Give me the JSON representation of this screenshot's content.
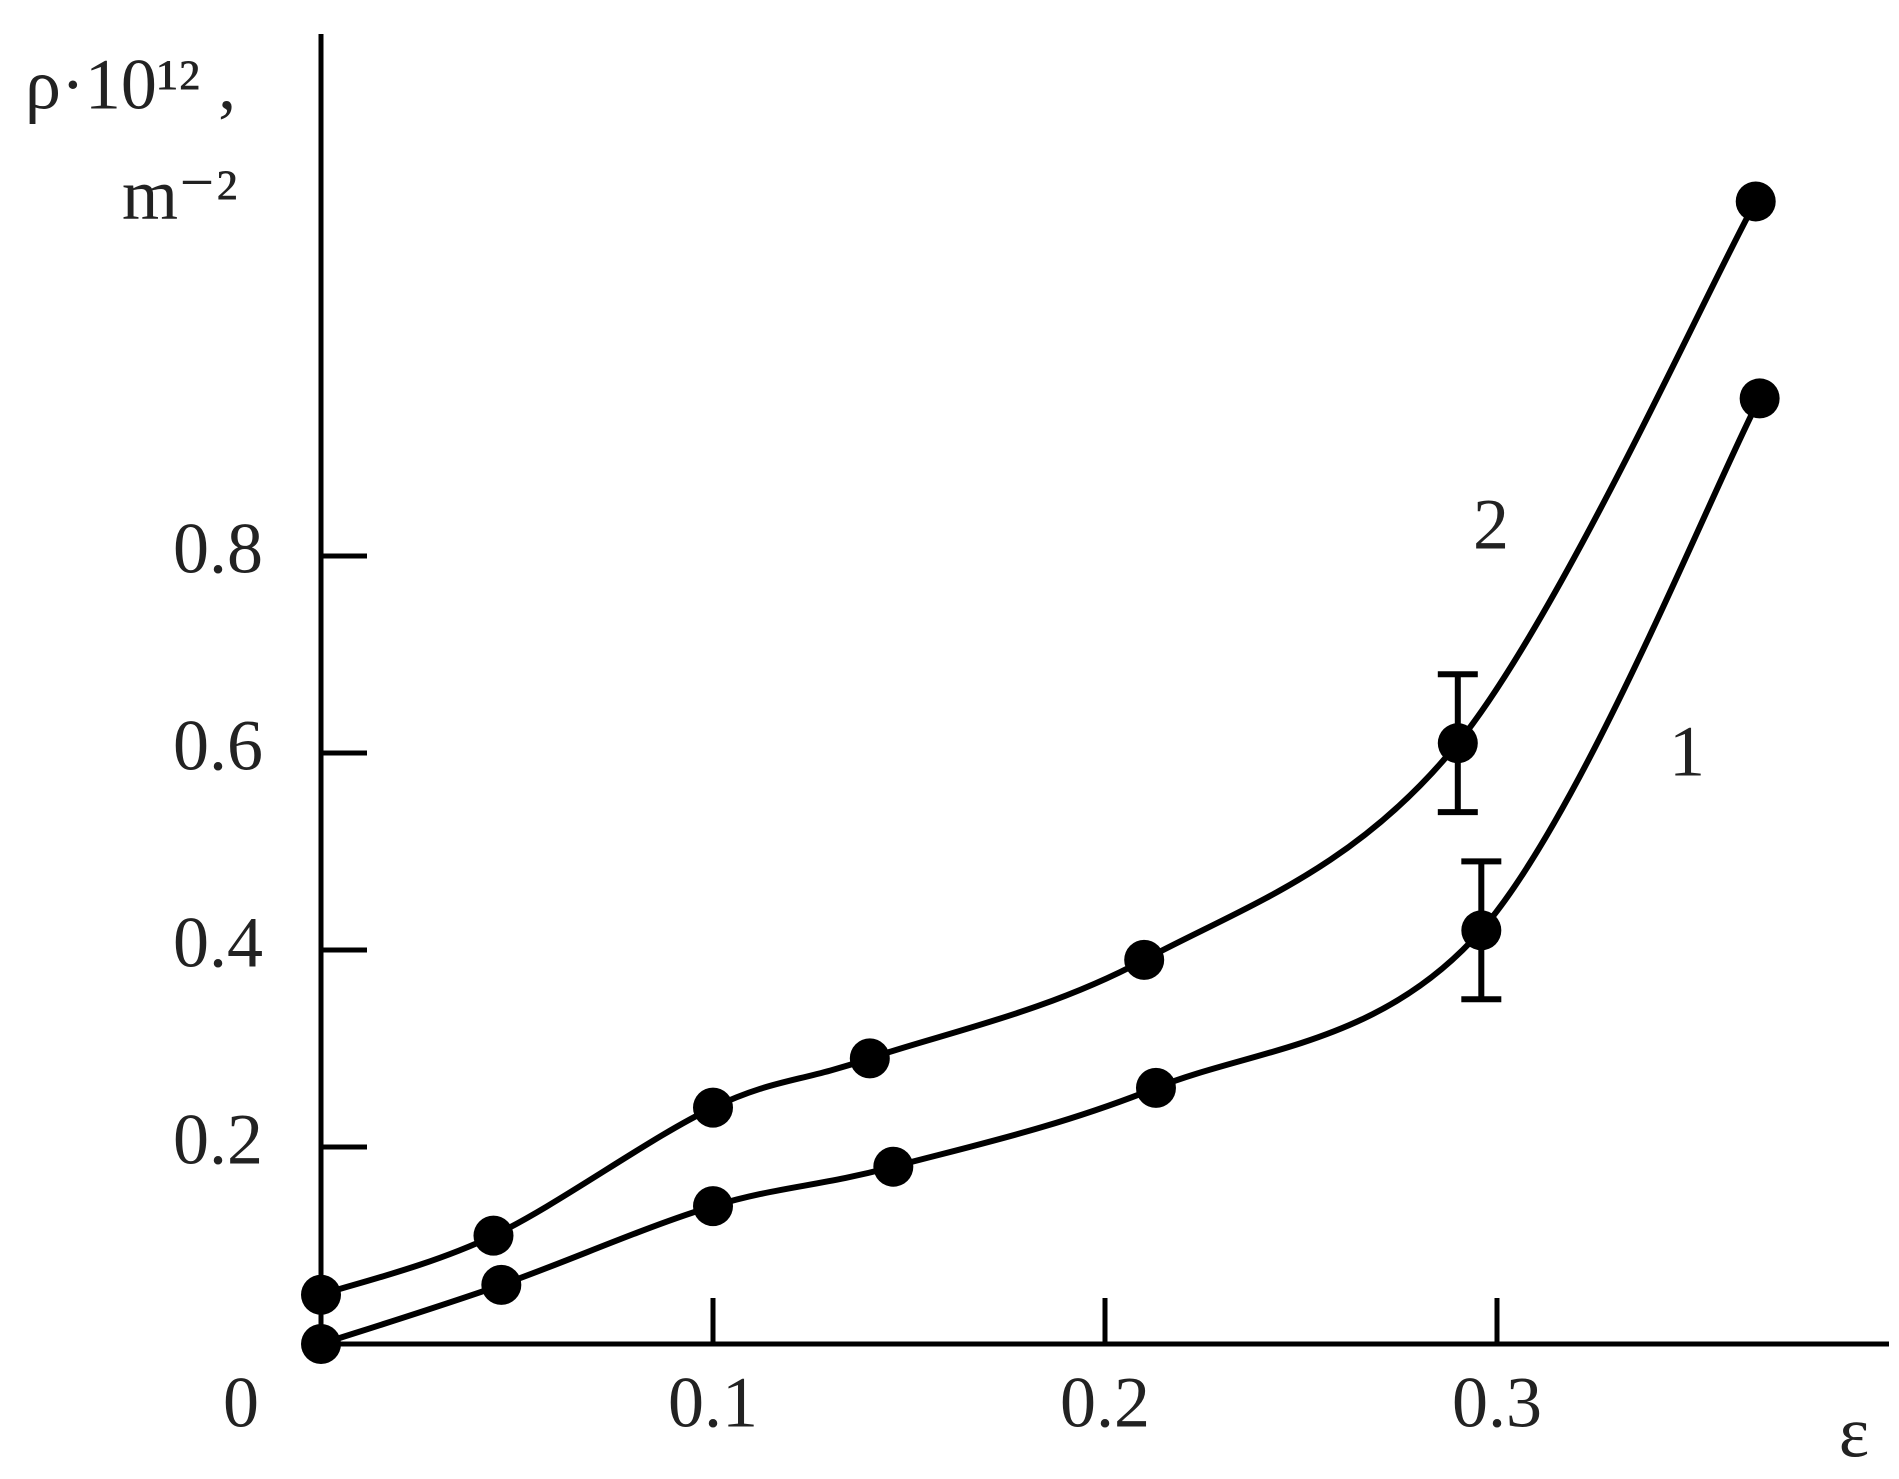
{
  "chart_data": {
    "type": "line",
    "ylabel": [
      "ρ·10¹² ,",
      "m⁻²"
    ],
    "xlabel": "ε",
    "xlim": [
      0,
      0.4
    ],
    "ylim": [
      0,
      1.33
    ],
    "xticks": [
      0,
      0.1,
      0.2,
      0.3
    ],
    "yticks": [
      0.2,
      0.4,
      0.6,
      0.8
    ],
    "series": [
      {
        "name": "1",
        "color": "#000000",
        "x": [
          0,
          0.046,
          0.1,
          0.146,
          0.213,
          0.296,
          0.367
        ],
        "values": [
          0,
          0.06,
          0.14,
          0.18,
          0.26,
          0.42,
          0.96
        ],
        "errors": [
          null,
          null,
          null,
          null,
          null,
          0.07,
          null
        ]
      },
      {
        "name": "2",
        "color": "#000000",
        "x": [
          0,
          0.044,
          0.1,
          0.14,
          0.21,
          0.29,
          0.366
        ],
        "values": [
          0.05,
          0.11,
          0.24,
          0.29,
          0.39,
          0.61,
          1.16
        ],
        "errors": [
          null,
          null,
          null,
          null,
          null,
          0.07,
          null
        ]
      }
    ]
  }
}
